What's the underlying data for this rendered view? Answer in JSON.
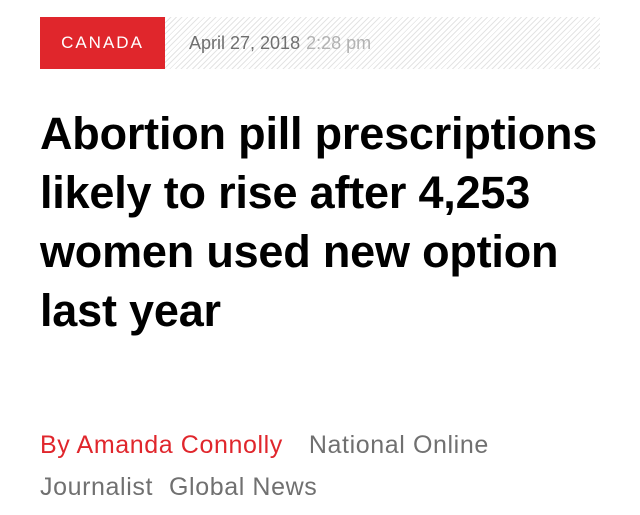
{
  "article": {
    "category": "CANADA",
    "date": "April 27, 2018",
    "time": "2:28 pm",
    "headline": "Abortion pill prescriptions likely to rise after 4,253 women used new option last year",
    "author": "By Amanda Connolly",
    "author_role": "National Online Journalist",
    "outlet": "Global News"
  },
  "colors": {
    "accent": "#e0262c",
    "headline": "#000000",
    "muted": "#707070"
  }
}
